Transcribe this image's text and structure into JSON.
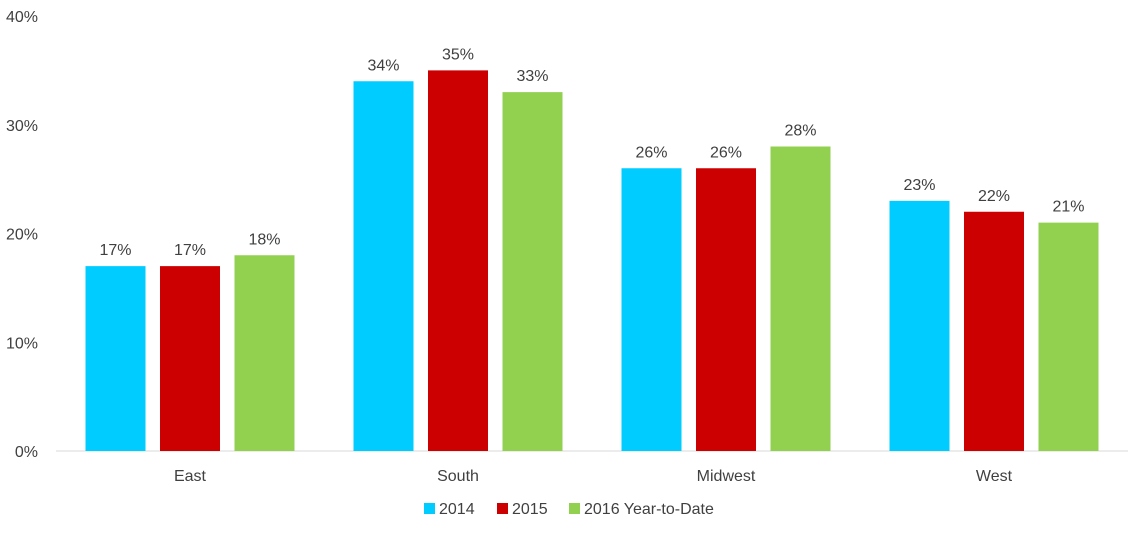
{
  "chart_data": {
    "type": "bar",
    "categories": [
      "East",
      "South",
      "Midwest",
      "West"
    ],
    "series": [
      {
        "name": "2014",
        "color": "#00CCFF",
        "values": [
          17,
          34,
          26,
          23
        ]
      },
      {
        "name": "2015",
        "color": "#CC0000",
        "values": [
          17,
          35,
          26,
          22
        ]
      },
      {
        "name": "2016 Year-to-Date",
        "color": "#92D050",
        "values": [
          18,
          33,
          28,
          21
        ]
      }
    ],
    "ylim": [
      0,
      40
    ],
    "yticks": [
      0,
      10,
      20,
      30,
      40
    ],
    "ytick_labels": [
      "0%",
      "10%",
      "20%",
      "30%",
      "40%"
    ],
    "value_suffix": "%",
    "grid": false,
    "legend_position": "bottom",
    "title": "",
    "xlabel": "",
    "ylabel": ""
  }
}
